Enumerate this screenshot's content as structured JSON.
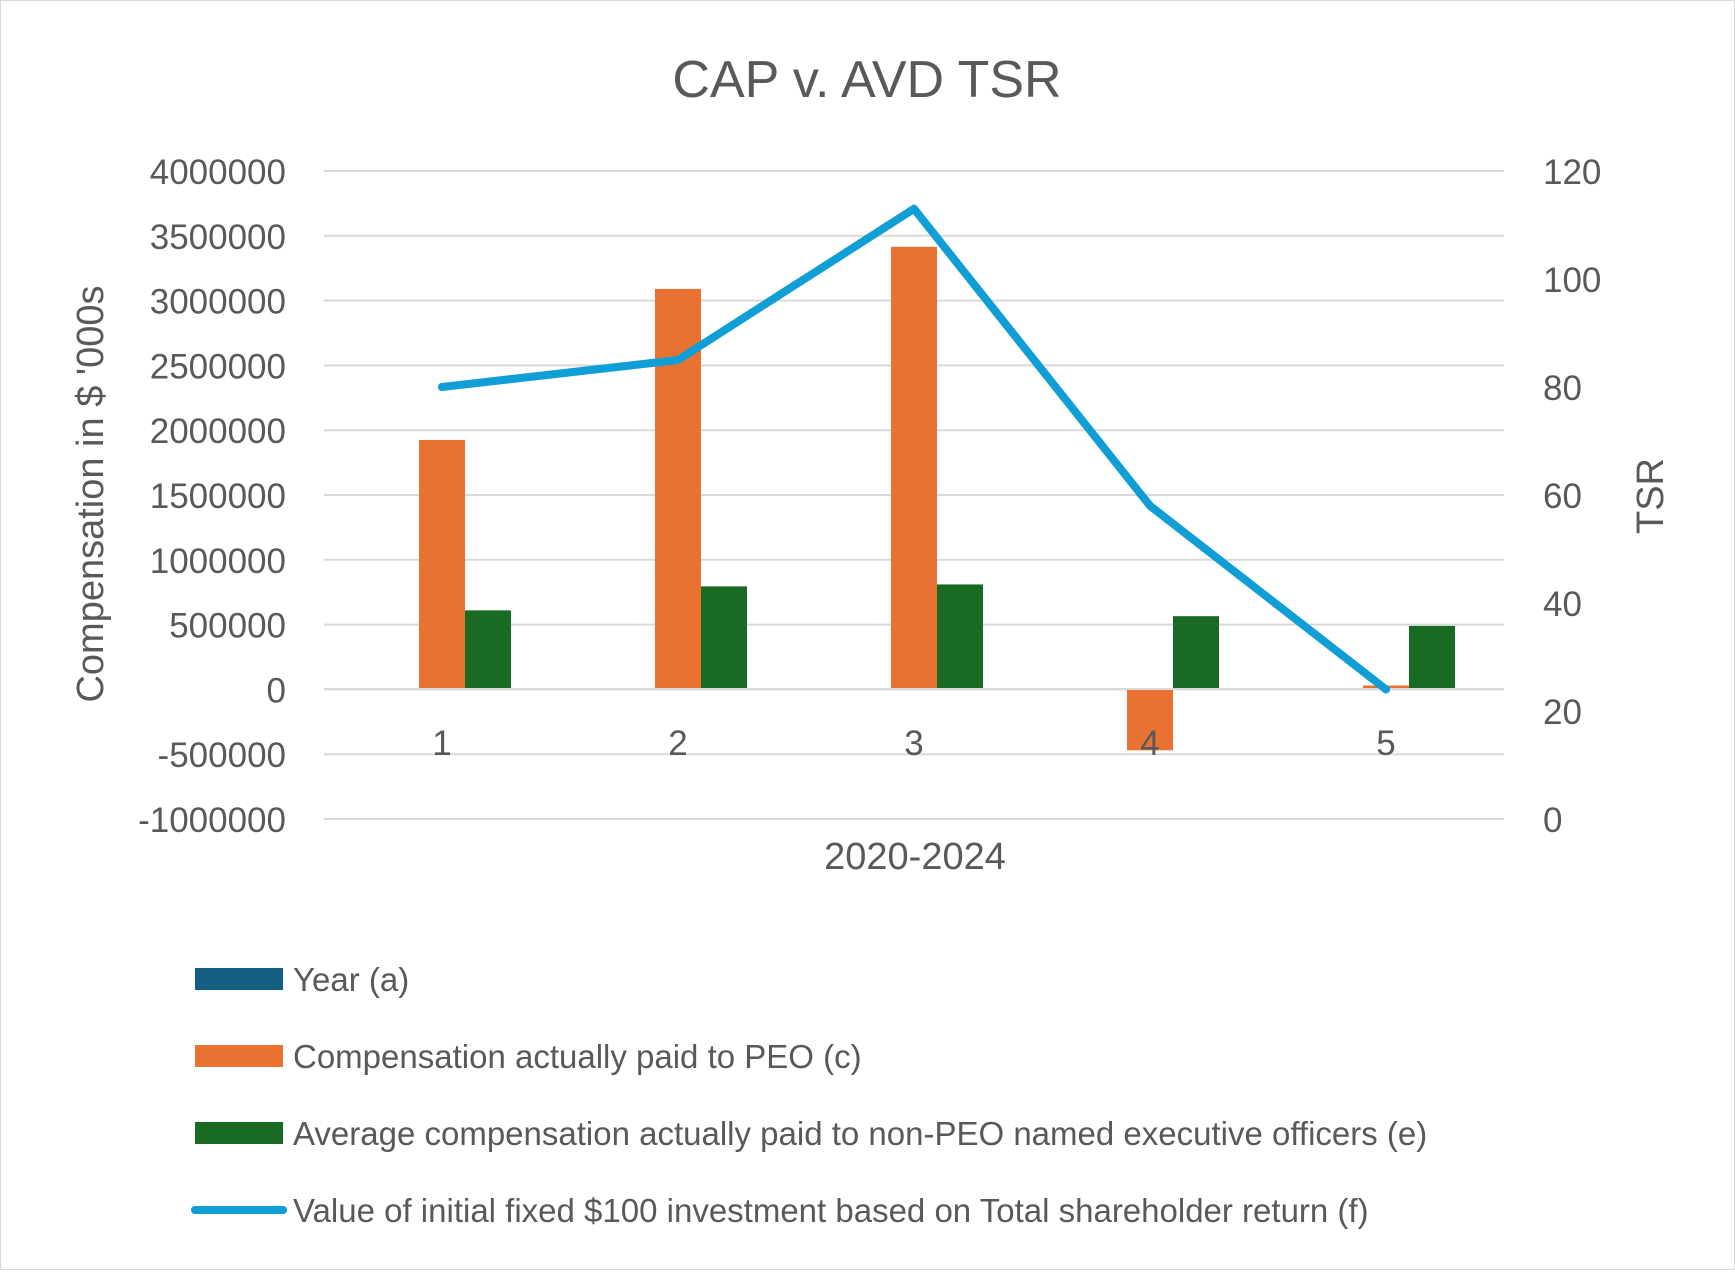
{
  "chart_data": {
    "type": "bar",
    "title": "CAP v. AVD TSR",
    "xlabel": "2020-2024",
    "ylabel": "Compensation in $ '000s",
    "y2label": "TSR",
    "categories": [
      "1",
      "2",
      "3",
      "4",
      "5"
    ],
    "ylim": [
      -1000000,
      4000000
    ],
    "y2lim": [
      0,
      120
    ],
    "yticks": [
      "4000000",
      "3500000",
      "3000000",
      "2500000",
      "2000000",
      "1500000",
      "1000000",
      "500000",
      "0",
      "-500000",
      "-1000000"
    ],
    "y2ticks": [
      "120",
      "100",
      "80",
      "60",
      "40",
      "20",
      "0"
    ],
    "grid": true,
    "legend_position": "bottom",
    "series": [
      {
        "name": "Year (a)",
        "kind": "bar",
        "axis": "left",
        "color": "#156082",
        "values": [
          0,
          0,
          0,
          0,
          0
        ]
      },
      {
        "name": "Compensation actually paid to PEO (c)",
        "kind": "bar",
        "axis": "left",
        "color": "#E97132",
        "values": [
          1925000,
          3090000,
          3415000,
          -470000,
          30000
        ]
      },
      {
        "name": "Average compensation actually paid to non-PEO named executive officers (e)",
        "kind": "bar",
        "axis": "left",
        "color": "#196B24",
        "values": [
          610000,
          795000,
          810000,
          565000,
          490000
        ]
      },
      {
        "name": "Value of initial fixed $100 investment based on Total shareholder return (f)",
        "kind": "line",
        "axis": "right",
        "color": "#0F9ED5",
        "values": [
          80,
          85,
          113,
          58,
          24
        ]
      }
    ]
  }
}
